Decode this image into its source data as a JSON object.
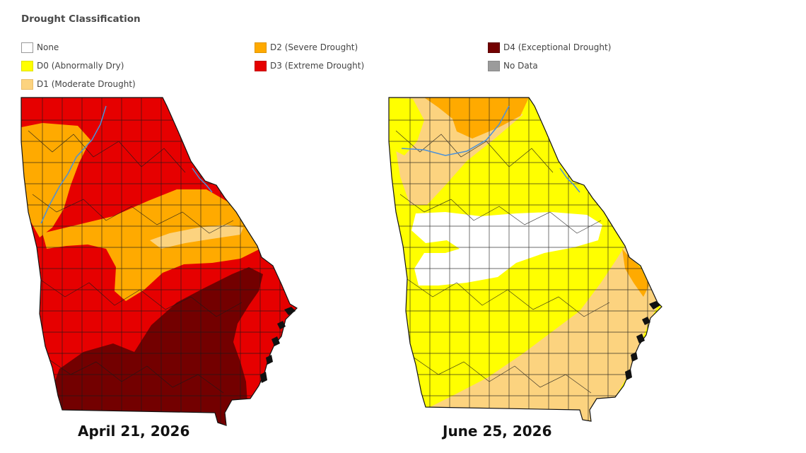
{
  "legend": {
    "title": "Drought Classification",
    "items": [
      {
        "key": "none",
        "label": "None",
        "color": "#ffffff"
      },
      {
        "key": "d0",
        "label": "D0 (Abnormally Dry)",
        "color": "#ffff00"
      },
      {
        "key": "d1",
        "label": "D1 (Moderate Drought)",
        "color": "#fcd37f"
      },
      {
        "key": "d2",
        "label": "D2 (Severe Drought)",
        "color": "#ffaa00"
      },
      {
        "key": "d3",
        "label": "D3 (Extreme Drought)",
        "color": "#e60000"
      },
      {
        "key": "d4",
        "label": "D4 (Exceptional Drought)",
        "color": "#730000"
      },
      {
        "key": "nodata",
        "label": "No Data",
        "color": "#9b9b9b"
      }
    ]
  },
  "maps": {
    "left": {
      "caption": "April 21, 2026",
      "dominant_classes": [
        "d3",
        "d4",
        "d2",
        "d1"
      ]
    },
    "right": {
      "caption": "June 25, 2026",
      "dominant_classes": [
        "d0",
        "d1",
        "none",
        "d2"
      ]
    }
  },
  "colors": {
    "county_line": "#1a1a1a",
    "river": "#4a90d9"
  }
}
